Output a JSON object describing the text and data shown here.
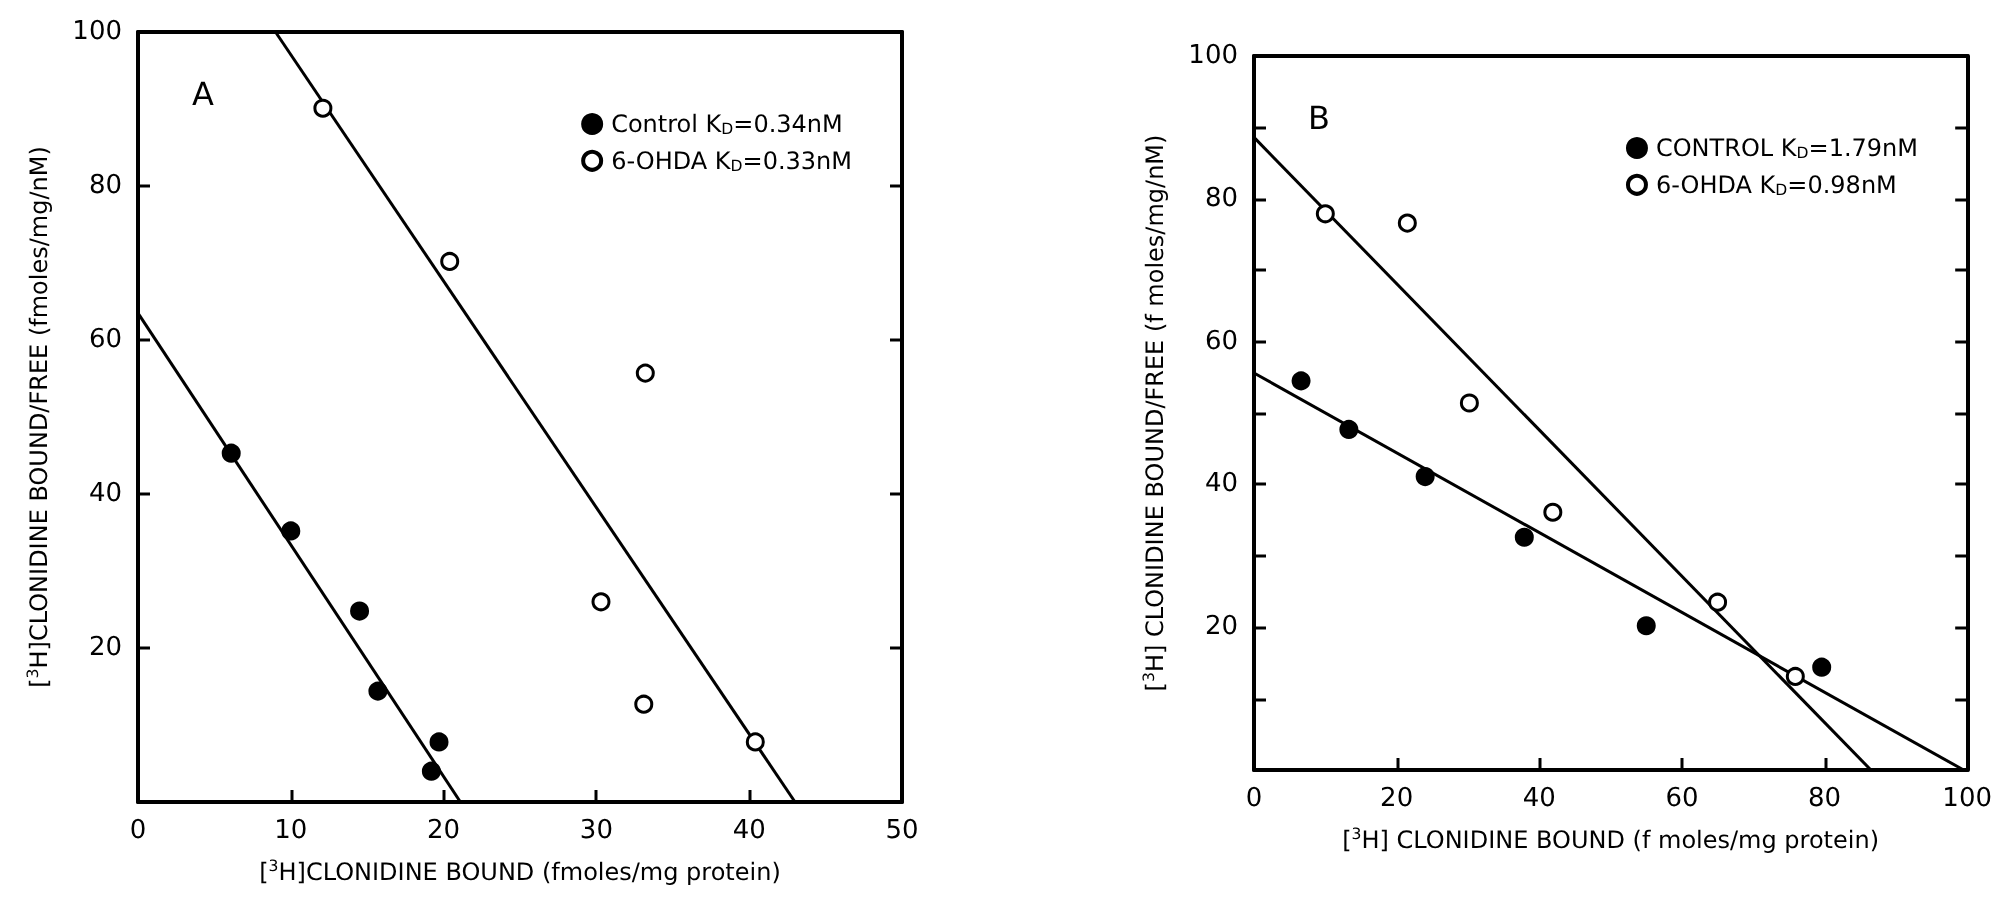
{
  "chart_data": [
    {
      "type": "scatter",
      "title": "A",
      "xlabel": "[$^{3}$H]CLONIDINE BOUND (fmoles/mg protein)",
      "ylabel": "[$^{3}$H]CLONIDINE BOUND/FREE (fmoles/mg/nM)",
      "xlim": [
        0,
        50
      ],
      "xticks": [
        0,
        10,
        20,
        30,
        40,
        50
      ],
      "ylim": [
        0,
        100
      ],
      "yticks": [
        20,
        40,
        60,
        80,
        100
      ],
      "grid": false,
      "legend": "top right",
      "marker": "circle",
      "series": [
        {
          "name": "Control K$_{D}$=0.34nM",
          "color": "#000000",
          "x": [
            6.1,
            10.0,
            14.5,
            15.7,
            19.7,
            19.2
          ],
          "values": [
            45.3,
            35.2,
            24.8,
            14.4,
            7.8,
            4.0
          ]
        },
        {
          "name": "6-OHDA K$_{D}$=0.33nM",
          "color": "#ffffff",
          "x": [
            12.1,
            20.4,
            33.2,
            30.3,
            33.1,
            40.4
          ],
          "values": [
            90.1,
            70.2,
            55.7,
            26.0,
            12.7,
            7.8
          ]
        },
        {
          "type": "line",
          "color": "#000000",
          "marker": "none",
          "x": [
            0,
            21.1
          ],
          "values": [
            63.5,
            0
          ]
        },
        {
          "type": "line",
          "color": "#000000",
          "marker": "none",
          "x": [
            9.0,
            43.0
          ],
          "values": [
            100,
            0
          ]
        }
      ]
    },
    {
      "type": "scatter",
      "title": "B",
      "xlabel": "[$^{3}$H] CLONIDINE BOUND (f moles/mg protein)",
      "ylabel": "[$^{3}$H] CLONIDINE BOUND/FREE (f moles/mg/nM)",
      "xlim": [
        0,
        100
      ],
      "xticks": [
        0,
        20,
        40,
        60,
        80,
        100
      ],
      "ylim": [
        0,
        100
      ],
      "yticks": [
        {
          "value": 10,
          "label": null
        },
        20,
        {
          "value": 30,
          "label": null
        },
        40,
        {
          "value": 50,
          "label": null
        },
        60,
        {
          "value": 70,
          "label": null
        },
        80,
        {
          "value": 90,
          "label": null
        },
        100
      ],
      "grid": false,
      "legend": "top right",
      "marker": "circle",
      "series": [
        {
          "name": "CONTROL K$_{D}$=1.79nM",
          "color": "#000000",
          "x": [
            6.6,
            13.3,
            24.0,
            37.9,
            55.0,
            79.6
          ],
          "values": [
            54.5,
            47.7,
            41.1,
            32.6,
            20.2,
            14.4
          ]
        },
        {
          "name": "6-OHDA K$_{D}$=0.98nM",
          "color": "#ffffff",
          "x": [
            10.0,
            21.5,
            30.2,
            41.9,
            65.0,
            75.9
          ],
          "values": [
            77.9,
            76.6,
            51.4,
            36.1,
            23.5,
            13.1
          ]
        },
        {
          "type": "line",
          "color": "#000000",
          "marker": "none",
          "x": [
            0,
            99.5
          ],
          "values": [
            55.6,
            0
          ]
        },
        {
          "type": "line",
          "color": "#000000",
          "marker": "none",
          "x": [
            0,
            86.5
          ],
          "values": [
            88.6,
            0
          ]
        }
      ]
    }
  ]
}
